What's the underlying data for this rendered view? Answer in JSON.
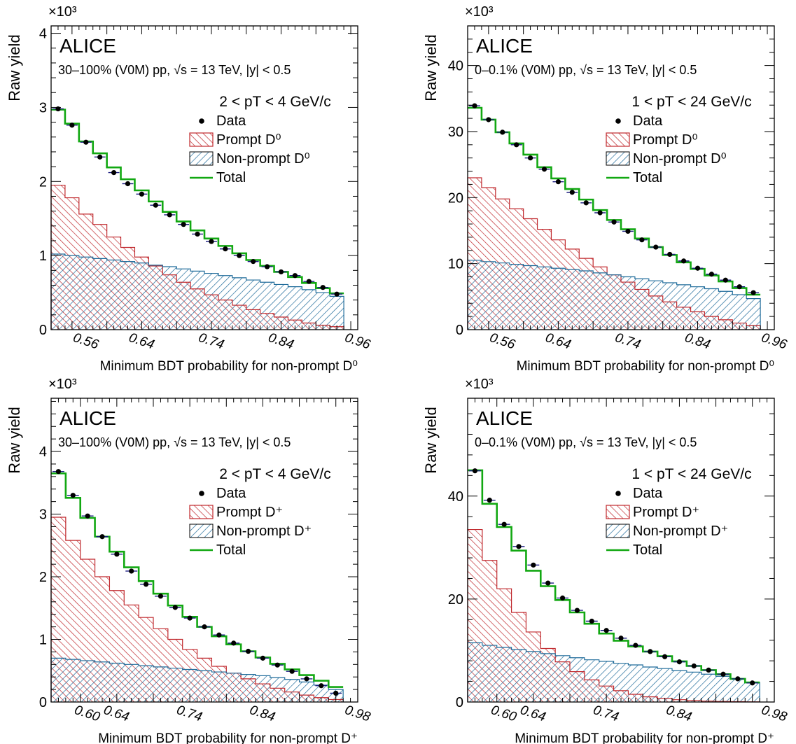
{
  "figure": {
    "colors": {
      "prompt": "#c0282d",
      "nonprompt": "#1f6b9a",
      "total": "#12a812",
      "data": "#000000",
      "overlap": "#4a2a55"
    }
  },
  "chart_data": [
    {
      "type": "bar",
      "panel": "top-left",
      "experiment": "ALICE",
      "collision_label": "30–100% (V0M) pp, √s = 13 TeV, |y| < 0.5",
      "pt_label": "2 < pT < 4 GeV/c",
      "multiplier": "×10³",
      "ylabel": "Raw yield",
      "xlabel": "Minimum BDT probability for non-prompt D⁰",
      "xlim": [
        0.52,
        0.96
      ],
      "ylim": [
        0,
        4100
      ],
      "yticks": [
        0,
        1000,
        2000,
        3000,
        4000
      ],
      "ytick_labels": [
        "0",
        "1",
        "2",
        "3",
        "4"
      ],
      "xticks": [
        0.56,
        0.64,
        0.74,
        0.84,
        0.96
      ],
      "xtick_labels": [
        "0.56",
        "0.64",
        "0.74",
        "0.84",
        "0.96"
      ],
      "x_edges": [
        0.52,
        0.54,
        0.56,
        0.58,
        0.6,
        0.62,
        0.64,
        0.66,
        0.68,
        0.7,
        0.72,
        0.74,
        0.76,
        0.78,
        0.8,
        0.82,
        0.84,
        0.86,
        0.88,
        0.9,
        0.92,
        0.94,
        0.96
      ],
      "legend": [
        "Data",
        "Prompt D⁰",
        "Non-prompt D⁰",
        "Total"
      ],
      "legend_location": "top-right",
      "series": [
        {
          "name": "Data",
          "values": [
            2980,
            2760,
            2530,
            2330,
            2120,
            1970,
            1830,
            1680,
            1550,
            1420,
            1290,
            1190,
            1090,
            1000,
            920,
            850,
            780,
            730,
            650,
            570,
            480
          ]
        },
        {
          "name": "Prompt D⁰",
          "values": [
            1950,
            1780,
            1560,
            1420,
            1250,
            1110,
            980,
            860,
            740,
            640,
            550,
            470,
            400,
            330,
            270,
            220,
            170,
            130,
            90,
            60,
            40
          ]
        },
        {
          "name": "Non-prompt D⁰",
          "values": [
            1020,
            1000,
            980,
            960,
            940,
            920,
            900,
            870,
            850,
            820,
            790,
            760,
            730,
            700,
            670,
            640,
            610,
            580,
            540,
            500,
            450
          ]
        },
        {
          "name": "Total",
          "values": [
            2970,
            2780,
            2540,
            2380,
            2190,
            2030,
            1880,
            1730,
            1590,
            1460,
            1340,
            1230,
            1130,
            1030,
            940,
            860,
            780,
            710,
            630,
            560,
            490
          ]
        }
      ]
    },
    {
      "type": "bar",
      "panel": "top-right",
      "experiment": "ALICE",
      "collision_label": "0–0.1% (V0M) pp, √s = 13 TeV, |y| < 0.5",
      "pt_label": "1 < pT < 24 GeV/c",
      "multiplier": "×10³",
      "ylabel": "Raw yield",
      "xlabel": "Minimum BDT probability for non-prompt D⁰",
      "xlim": [
        0.52,
        0.96
      ],
      "ylim": [
        0,
        46000
      ],
      "yticks": [
        0,
        10000,
        20000,
        30000,
        40000
      ],
      "ytick_labels": [
        "0",
        "10",
        "20",
        "30",
        "40"
      ],
      "xticks": [
        0.56,
        0.64,
        0.74,
        0.84,
        0.96
      ],
      "xtick_labels": [
        "0.56",
        "0.64",
        "0.74",
        "0.84",
        "0.96"
      ],
      "x_edges": [
        0.52,
        0.54,
        0.56,
        0.58,
        0.6,
        0.62,
        0.64,
        0.66,
        0.68,
        0.7,
        0.72,
        0.74,
        0.76,
        0.78,
        0.8,
        0.82,
        0.84,
        0.86,
        0.88,
        0.9,
        0.92,
        0.94,
        0.96
      ],
      "legend": [
        "Data",
        "Prompt D⁰",
        "Non-prompt D⁰",
        "Total"
      ],
      "legend_location": "top-right",
      "series": [
        {
          "name": "Data",
          "values": [
            33900,
            31800,
            29900,
            28000,
            26000,
            24300,
            22400,
            20800,
            19200,
            17700,
            16300,
            14900,
            13600,
            12500,
            11400,
            10400,
            9300,
            8400,
            7500,
            6500,
            5600
          ]
        },
        {
          "name": "Prompt D⁰",
          "values": [
            23000,
            21500,
            19800,
            18300,
            16800,
            15200,
            13600,
            12200,
            10800,
            9500,
            8300,
            7200,
            6100,
            5100,
            4200,
            3400,
            2700,
            2000,
            1500,
            1000,
            600
          ]
        },
        {
          "name": "Non-prompt D⁰",
          "values": [
            10500,
            10300,
            10100,
            9900,
            9700,
            9500,
            9300,
            9100,
            8900,
            8600,
            8300,
            8000,
            7700,
            7400,
            7100,
            6800,
            6500,
            6200,
            5800,
            5300,
            4700
          ]
        },
        {
          "name": "Total",
          "values": [
            33600,
            31800,
            29900,
            28200,
            26500,
            24600,
            22900,
            21300,
            19700,
            18100,
            16600,
            15200,
            13800,
            12500,
            11300,
            10200,
            9200,
            8200,
            7300,
            6300,
            5300
          ]
        }
      ]
    },
    {
      "type": "bar",
      "panel": "bottom-left",
      "experiment": "ALICE",
      "collision_label": "30–100% (V0M) pp, √s = 13 TeV, |y| < 0.5",
      "pt_label": "2 < pT < 4 GeV/c",
      "multiplier": "×10³",
      "ylabel": "Raw yield",
      "xlabel": "Minimum BDT probability for non-prompt D⁺",
      "xlim": [
        0.56,
        0.98
      ],
      "ylim": [
        0,
        4850
      ],
      "yticks": [
        0,
        1000,
        2000,
        3000,
        4000
      ],
      "ytick_labels": [
        "0",
        "1",
        "2",
        "3",
        "4"
      ],
      "xticks": [
        0.6,
        0.64,
        0.74,
        0.84,
        0.98
      ],
      "xtick_labels": [
        "0.60",
        "0.64",
        "0.74",
        "0.84",
        "0.98"
      ],
      "x_edges": [
        0.56,
        0.58,
        0.6,
        0.62,
        0.64,
        0.66,
        0.68,
        0.7,
        0.72,
        0.74,
        0.76,
        0.78,
        0.8,
        0.82,
        0.84,
        0.86,
        0.88,
        0.9,
        0.92,
        0.94,
        0.96,
        0.98
      ],
      "legend": [
        "Data",
        "Prompt D⁺",
        "Non-prompt D⁺",
        "Total"
      ],
      "legend_location": "top-right",
      "series": [
        {
          "name": "Data",
          "values": [
            3680,
            3300,
            2970,
            2640,
            2360,
            2090,
            1880,
            1690,
            1510,
            1340,
            1200,
            1070,
            940,
            810,
            700,
            590,
            490,
            370,
            260,
            140
          ]
        },
        {
          "name": "Prompt D⁺",
          "values": [
            2950,
            2580,
            2280,
            2000,
            1780,
            1550,
            1350,
            1170,
            1000,
            840,
            700,
            570,
            460,
            370,
            290,
            220,
            160,
            110,
            70,
            40
          ]
        },
        {
          "name": "Non-prompt D⁺",
          "values": [
            700,
            680,
            660,
            640,
            620,
            600,
            580,
            560,
            540,
            520,
            500,
            480,
            460,
            440,
            420,
            390,
            360,
            320,
            270,
            200
          ]
        },
        {
          "name": "Total",
          "values": [
            3650,
            3260,
            2940,
            2640,
            2400,
            2150,
            1930,
            1730,
            1540,
            1360,
            1200,
            1050,
            920,
            810,
            710,
            610,
            520,
            430,
            340,
            240
          ]
        }
      ]
    },
    {
      "type": "bar",
      "panel": "bottom-right",
      "experiment": "ALICE",
      "collision_label": "0–0.1% (V0M) pp, √s = 13 TeV, |y| < 0.5",
      "pt_label": "1 < pT < 24 GeV/c",
      "multiplier": "×10³",
      "ylabel": "Raw yield",
      "xlabel": "Minimum BDT probability for non-prompt D⁺",
      "xlim": [
        0.56,
        0.98
      ],
      "ylim": [
        0,
        59000
      ],
      "yticks": [
        0,
        20000,
        40000
      ],
      "ytick_labels": [
        "0",
        "20",
        "40"
      ],
      "xticks": [
        0.6,
        0.64,
        0.74,
        0.84,
        0.98
      ],
      "xtick_labels": [
        "0.60",
        "0.64",
        "0.74",
        "0.84",
        "0.98"
      ],
      "x_edges": [
        0.56,
        0.58,
        0.6,
        0.62,
        0.64,
        0.66,
        0.68,
        0.7,
        0.72,
        0.74,
        0.76,
        0.78,
        0.8,
        0.82,
        0.84,
        0.86,
        0.88,
        0.9,
        0.92,
        0.94,
        0.96,
        0.98
      ],
      "legend": [
        "Data",
        "Prompt D⁺",
        "Non-prompt D⁺",
        "Total"
      ],
      "legend_location": "top-right",
      "series": [
        {
          "name": "Data",
          "values": [
            44900,
            39200,
            34500,
            30200,
            26600,
            23100,
            20200,
            17800,
            15700,
            13900,
            12400,
            11000,
            9800,
            8800,
            7800,
            7000,
            6200,
            5400,
            4500,
            3700
          ]
        },
        {
          "name": "Prompt D⁺",
          "values": [
            33500,
            27500,
            22000,
            17400,
            13600,
            10400,
            7800,
            5900,
            4300,
            3100,
            2200,
            1500,
            1000,
            700,
            450,
            300,
            180,
            110,
            70,
            40
          ]
        },
        {
          "name": "Non-prompt D⁺",
          "values": [
            11500,
            11000,
            10600,
            10200,
            9800,
            9400,
            9000,
            8600,
            8200,
            7900,
            7500,
            7200,
            6800,
            6500,
            6100,
            5800,
            5400,
            5000,
            4500,
            3800
          ]
        },
        {
          "name": "Total",
          "values": [
            45000,
            38500,
            34000,
            29400,
            25500,
            22500,
            19800,
            17400,
            15200,
            13300,
            11900,
            10800,
            9800,
            8900,
            7900,
            7000,
            6200,
            5400,
            4500,
            3800
          ]
        }
      ]
    }
  ]
}
